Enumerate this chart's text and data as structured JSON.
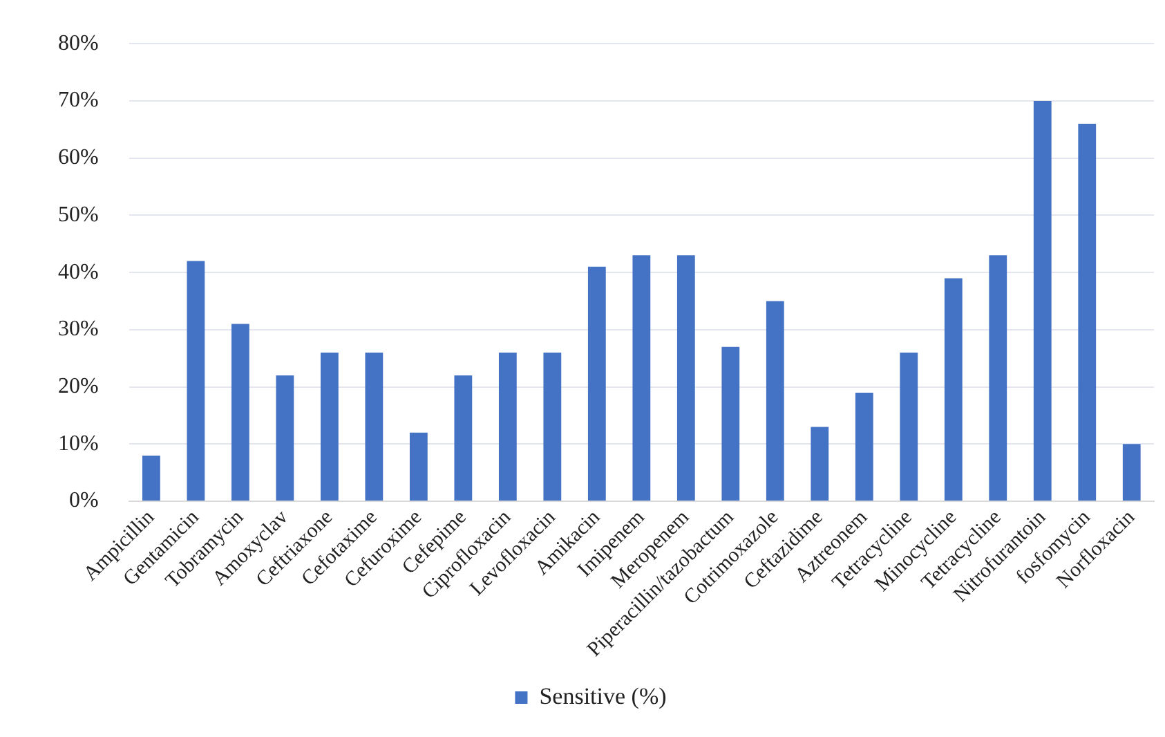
{
  "chart_data": {
    "type": "bar",
    "categories": [
      "Ampicillin",
      "Gentamicin",
      "Tobramycin",
      "Amoxyclav",
      "Ceftriaxone",
      "Cefotaxime",
      "Cefuroxime",
      "Cefepime",
      "Ciprofloxacin",
      "Levofloxacin",
      "Amikacin",
      "Imipenem",
      "Meropenem",
      "Piperacillin/tazobactum",
      "Cotrimoxazole",
      "Ceftazidime",
      "Aztreonem",
      "Tetracycline",
      "Minocycline",
      "Tetracycline",
      "Nitrofurantoin",
      "fosfomycin",
      "Norfloxacin"
    ],
    "series": [
      {
        "name": "Sensitive (%)",
        "color": "#4472c4",
        "values": [
          8,
          42,
          31,
          22,
          26,
          26,
          12,
          22,
          26,
          26,
          41,
          43,
          43,
          27,
          35,
          13,
          19,
          26,
          39,
          43,
          70,
          66,
          10
        ]
      }
    ],
    "ylim": [
      0,
      80
    ],
    "yticks": [
      {
        "value": 0,
        "label": "0%"
      },
      {
        "value": 10,
        "label": "10%"
      },
      {
        "value": 20,
        "label": "20%"
      },
      {
        "value": 30,
        "label": "30%"
      },
      {
        "value": 40,
        "label": "40%"
      },
      {
        "value": 50,
        "label": "50%"
      },
      {
        "value": 60,
        "label": "60%"
      },
      {
        "value": 70,
        "label": "70%"
      },
      {
        "value": 80,
        "label": "80%"
      }
    ],
    "grid": "y",
    "legend": "bottom"
  }
}
